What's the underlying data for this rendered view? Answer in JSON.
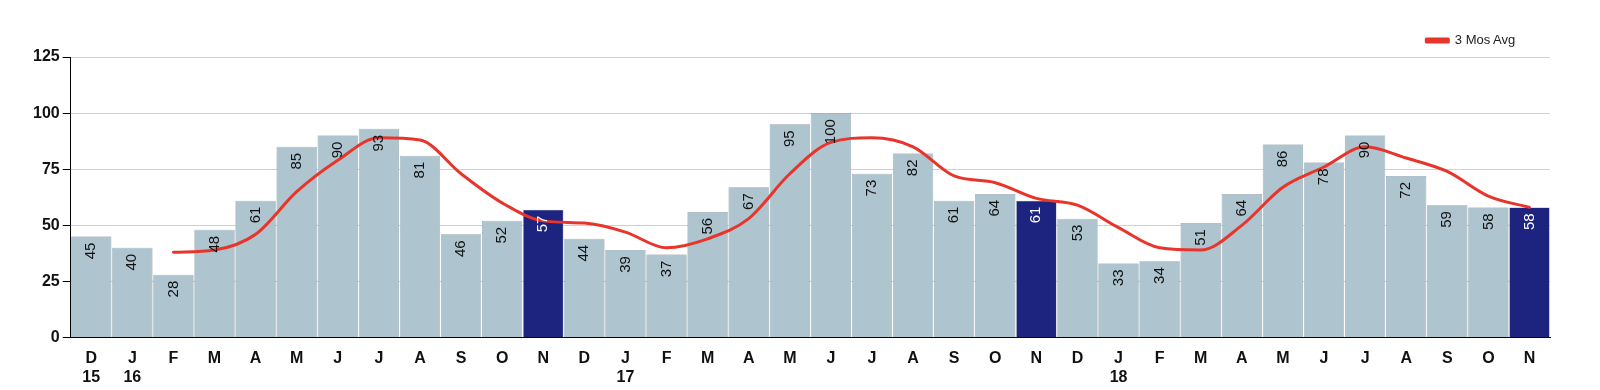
{
  "chart_data": {
    "type": "bar",
    "categories": [
      "D\n15",
      "J\n16",
      "F",
      "M",
      "A",
      "M",
      "J",
      "J",
      "A",
      "S",
      "O",
      "N",
      "D",
      "J\n17",
      "F",
      "M",
      "A",
      "M",
      "J",
      "J",
      "A",
      "S",
      "O",
      "N",
      "D",
      "J\n18",
      "F",
      "M",
      "A",
      "M",
      "J",
      "J",
      "A",
      "S",
      "O",
      "N"
    ],
    "series": [
      {
        "values": [
          45,
          40,
          28,
          48,
          61,
          85,
          90,
          93,
          81,
          46,
          52,
          57,
          44,
          39,
          37,
          56,
          67,
          95,
          100,
          73,
          82,
          61,
          64,
          61,
          53,
          33,
          34,
          51,
          64,
          86,
          78,
          90,
          72,
          59,
          58,
          58
        ],
        "value_labels": [
          "45",
          "40",
          "28",
          "48",
          "61",
          "85",
          "90",
          "93",
          "81",
          "46",
          "52",
          "57",
          "44",
          "39",
          "37",
          "56",
          "67",
          "95",
          "100",
          "73",
          "82",
          "61",
          "64",
          "61",
          "53",
          "33",
          "34",
          "51",
          "64",
          "86",
          "78",
          "90",
          "72",
          "59",
          "58",
          "58"
        ],
        "colors": [
          "#aec4cf",
          "#aec4cf",
          "#aec4cf",
          "#aec4cf",
          "#aec4cf",
          "#aec4cf",
          "#aec4cf",
          "#aec4cf",
          "#aec4cf",
          "#aec4cf",
          "#aec4cf",
          "#1c2480",
          "#aec4cf",
          "#aec4cf",
          "#aec4cf",
          "#aec4cf",
          "#aec4cf",
          "#aec4cf",
          "#aec4cf",
          "#aec4cf",
          "#aec4cf",
          "#aec4cf",
          "#aec4cf",
          "#1c2480",
          "#aec4cf",
          "#aec4cf",
          "#aec4cf",
          "#aec4cf",
          "#aec4cf",
          "#aec4cf",
          "#aec4cf",
          "#aec4cf",
          "#aec4cf",
          "#aec4cf",
          "#aec4cf",
          "#1c2480"
        ]
      },
      {
        "type": "line",
        "name": "3 Mos Avg",
        "color": "#e8352b",
        "values": [
          null,
          null,
          38,
          39,
          46,
          65,
          79,
          89,
          88,
          73,
          60,
          52,
          51,
          47,
          40,
          44,
          53,
          73,
          87,
          89,
          85,
          72,
          69,
          62,
          59,
          49,
          40,
          39,
          50,
          67,
          76,
          85,
          80,
          74,
          63,
          58
        ]
      }
    ],
    "ylim": [
      0,
      125
    ],
    "yticks": [
      0,
      25,
      50,
      75,
      100,
      125
    ],
    "grid": "y",
    "legend": "top right",
    "marker": "none",
    "line_style": "solid"
  }
}
